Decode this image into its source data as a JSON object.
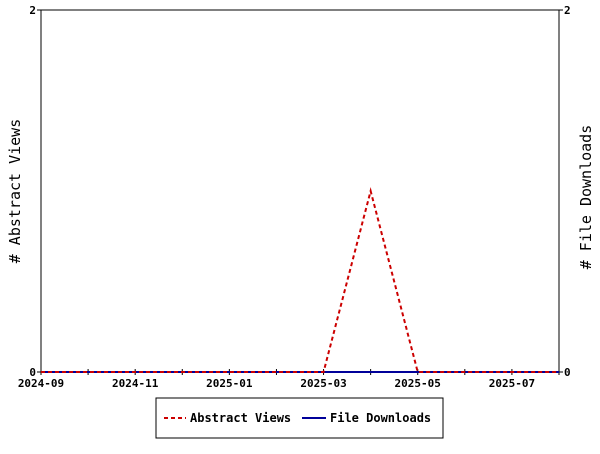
{
  "chart_data": {
    "type": "line",
    "x_ticks": [
      "2024-09",
      "2024-11",
      "2025-01",
      "2025-03",
      "2025-05",
      "2025-07"
    ],
    "x": [
      "2024-09",
      "2024-10",
      "2024-11",
      "2024-12",
      "2025-01",
      "2025-02",
      "2025-03",
      "2025-04",
      "2025-05",
      "2025-06",
      "2025-07",
      "2025-08"
    ],
    "xlim": [
      "2024-09",
      "2025-08"
    ],
    "ylabel_left": "# Abstract Views",
    "ylabel_right": "# File Downloads",
    "ylim_left": [
      0,
      2
    ],
    "ylim_right": [
      0,
      2
    ],
    "y_ticks_left": [
      "0",
      "2"
    ],
    "y_ticks_right": [
      "0",
      "2"
    ],
    "grid": false,
    "legend_position": "bottom",
    "series": [
      {
        "name": "Abstract Views",
        "axis": "left",
        "color": "#cc0000",
        "style": "dashed",
        "values": [
          0,
          0,
          0,
          0,
          0,
          0,
          0,
          1,
          0,
          0,
          0,
          0
        ]
      },
      {
        "name": "File Downloads",
        "axis": "right",
        "color": "#000099",
        "style": "solid",
        "values": [
          0,
          0,
          0,
          0,
          0,
          0,
          0,
          0,
          0,
          0,
          0,
          0
        ]
      }
    ]
  }
}
